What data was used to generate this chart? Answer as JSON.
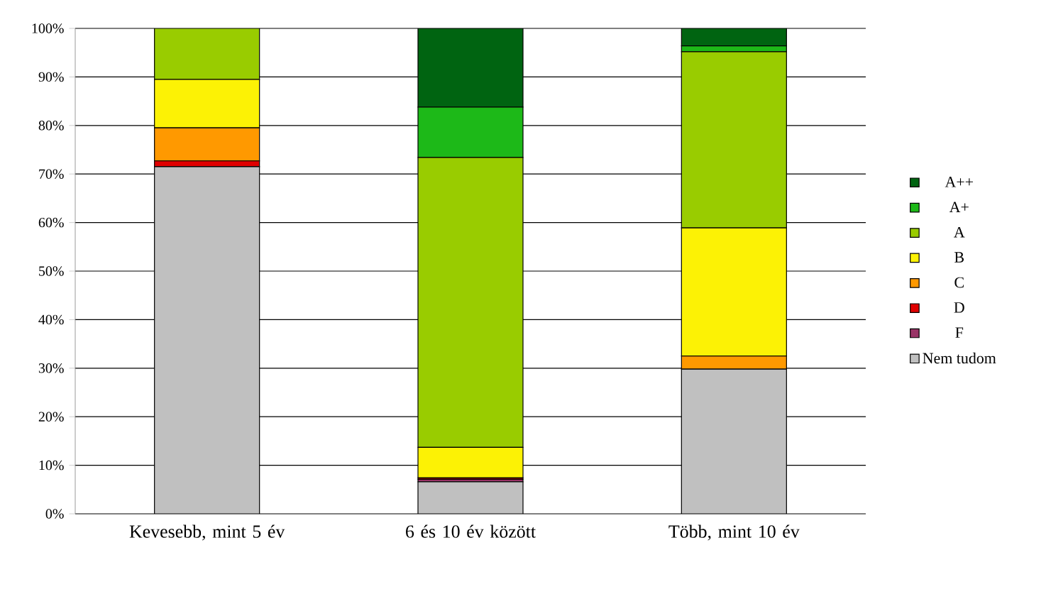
{
  "chart_data": {
    "type": "bar",
    "stacked": true,
    "categories": [
      "Kevesebb, mint 5 év",
      "6 és 10 év között",
      "Több, mint 10 év"
    ],
    "series": [
      {
        "name": "Nem tudom",
        "color": "#c0c0c0",
        "values": [
          71.5,
          6.6,
          29.8
        ]
      },
      {
        "name": "F",
        "color": "#993366",
        "values": [
          0,
          0.5,
          0
        ]
      },
      {
        "name": "D",
        "color": "#e00000",
        "values": [
          1.2,
          0.3,
          0
        ]
      },
      {
        "name": "C",
        "color": "#ff9900",
        "values": [
          6.8,
          0,
          2.7
        ]
      },
      {
        "name": "B",
        "color": "#fcf205",
        "values": [
          10,
          6.3,
          26.4
        ]
      },
      {
        "name": "A",
        "color": "#99cc00",
        "values": [
          10.5,
          59.7,
          36.3
        ]
      },
      {
        "name": "A+",
        "color": "#1db918",
        "values": [
          0,
          10.4,
          1.2
        ]
      },
      {
        "name": "A++",
        "color": "#006411",
        "values": [
          0,
          16.2,
          3.6
        ]
      }
    ],
    "ylim": [
      0,
      100
    ],
    "yticks": [
      {
        "value": 0,
        "label": "0%"
      },
      {
        "value": 10,
        "label": "10%"
      },
      {
        "value": 20,
        "label": "20%"
      },
      {
        "value": 30,
        "label": "30%"
      },
      {
        "value": 40,
        "label": "40%"
      },
      {
        "value": 50,
        "label": "50%"
      },
      {
        "value": 60,
        "label": "60%"
      },
      {
        "value": 70,
        "label": "70%"
      },
      {
        "value": 80,
        "label": "80%"
      },
      {
        "value": 90,
        "label": "90%"
      },
      {
        "value": 100,
        "label": "100%"
      }
    ],
    "grid": "y",
    "legend": "right"
  }
}
